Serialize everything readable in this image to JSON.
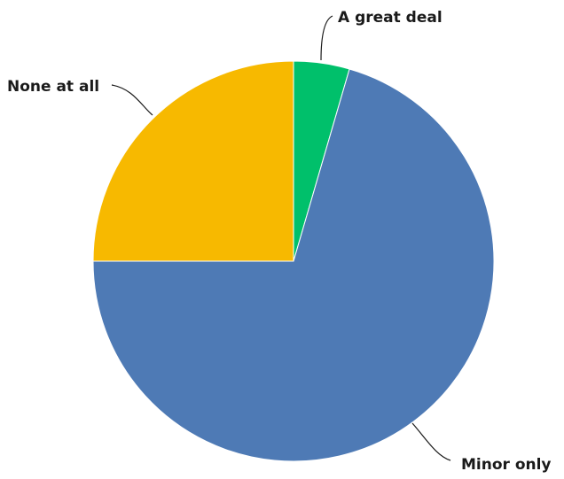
{
  "chart_data": {
    "type": "pie",
    "title": "",
    "start_angle_deg": 0,
    "direction": "clockwise",
    "slices": [
      {
        "label": "A great deal",
        "value": 4.5,
        "color": "#00C06B"
      },
      {
        "label": "Minor only",
        "value": 70.5,
        "color": "#4E7AB5"
      },
      {
        "label": "None at all",
        "value": 25.0,
        "color": "#F7B900"
      }
    ]
  }
}
